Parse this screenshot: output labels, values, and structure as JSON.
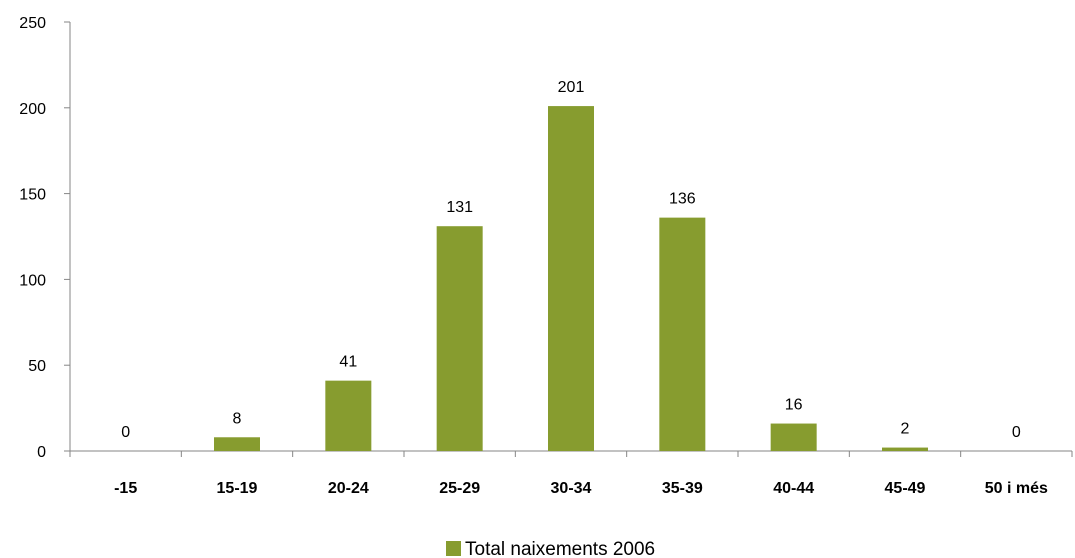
{
  "chart_data": {
    "type": "bar",
    "categories": [
      "-15",
      "15-19",
      "20-24",
      "25-29",
      "30-34",
      "35-39",
      "40-44",
      "45-49",
      "50 i més"
    ],
    "series": [
      {
        "name": "Total naixements 2006",
        "values": [
          0,
          8,
          41,
          131,
          201,
          136,
          16,
          2,
          0
        ]
      }
    ],
    "ylim": [
      0,
      250
    ],
    "yticks": [
      0,
      50,
      100,
      150,
      200,
      250
    ],
    "grid": false,
    "legend_position": "bottom-center",
    "data_labels": true,
    "bar_color": "#879C2F"
  }
}
